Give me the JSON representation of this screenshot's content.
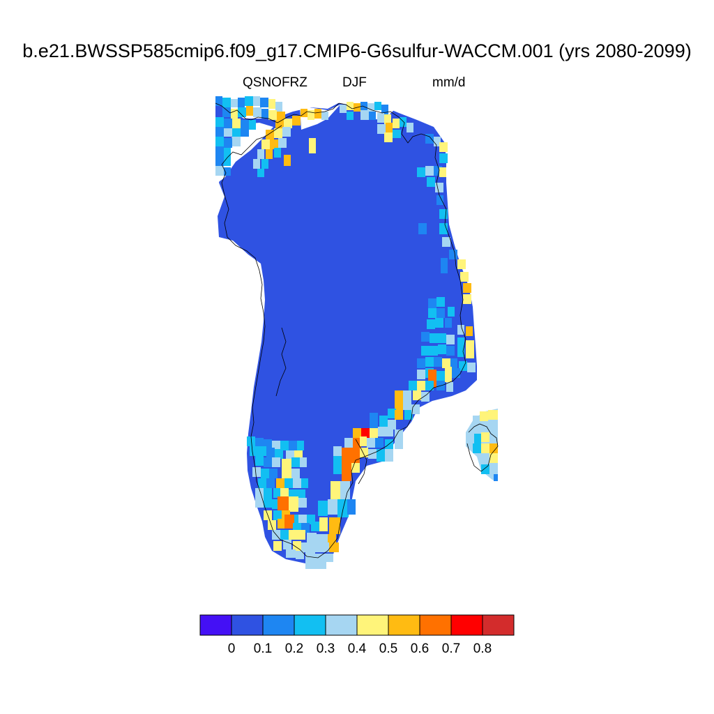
{
  "title": "b.e21.BWSSP585cmip6.f09_g17.CMIP6-G6sulfur-WACCM.001 (yrs 2080-2099)",
  "left_label": "QSNOFRZ",
  "center_label": "DJF",
  "right_label": "mm/d",
  "map": {
    "region": "Greenland",
    "projection": "polar stereographic",
    "coastlines": true,
    "dominant_value_range": "0 - 0.1"
  },
  "colorbar": {
    "tick_labels": [
      "0",
      "0.1",
      "0.2",
      "0.3",
      "0.4",
      "0.5",
      "0.6",
      "0.7",
      "0.8"
    ],
    "colors": [
      "#4410f5",
      "#2f52e2",
      "#1e86f2",
      "#12bff2",
      "#a6d6f2",
      "#fff47a",
      "#ffbb12",
      "#ff7100",
      "#ff0000",
      "#d32c2c"
    ]
  }
}
